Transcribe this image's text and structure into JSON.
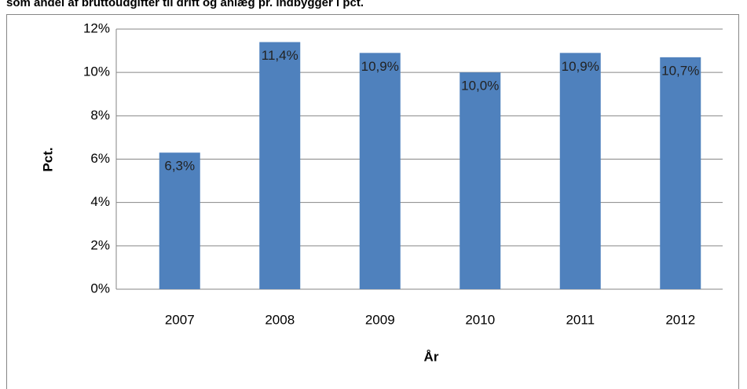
{
  "chart_data": {
    "type": "bar",
    "title": "som andel af bruttoudgifter til drift og anlæg pr. indbygger i pct.",
    "categories": [
      "2007",
      "2008",
      "2009",
      "2010",
      "2011",
      "2012"
    ],
    "values": [
      6.3,
      11.4,
      10.9,
      10.0,
      10.9,
      10.7
    ],
    "value_labels": [
      "6,3%",
      "11,4%",
      "10,9%",
      "10,0%",
      "10,9%",
      "10,7%"
    ],
    "color": "#4f81bd",
    "ylim": [
      0,
      12
    ],
    "yticks": [
      {
        "value": 0,
        "label": "0%"
      },
      {
        "value": 2,
        "label": "2%"
      },
      {
        "value": 4,
        "label": "4%"
      },
      {
        "value": 6,
        "label": "6%"
      },
      {
        "value": 8,
        "label": "8%"
      },
      {
        "value": 10,
        "label": "10%"
      },
      {
        "value": 12,
        "label": "12%"
      }
    ],
    "ylabel": "Pct.",
    "xlabel": "År",
    "grid": true
  }
}
